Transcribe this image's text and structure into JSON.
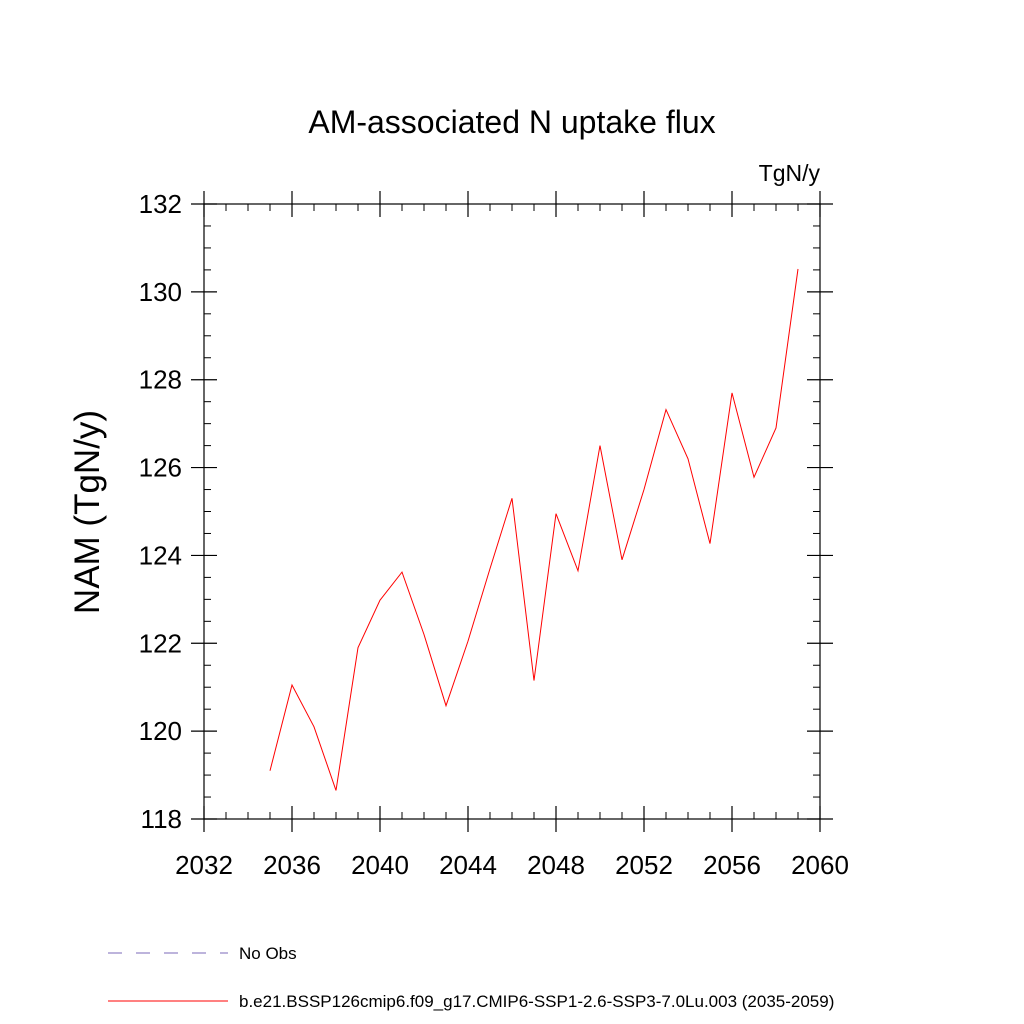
{
  "chart_data": {
    "type": "line",
    "title": "AM-associated N uptake flux",
    "units_label": "TgN/y",
    "ylabel": "NAM  (TgN/y)",
    "xlabel": "",
    "xlim": [
      2032,
      2060
    ],
    "ylim": [
      118,
      132
    ],
    "x_ticks": [
      2032,
      2036,
      2040,
      2044,
      2048,
      2052,
      2056,
      2060
    ],
    "y_ticks": [
      118,
      120,
      122,
      124,
      126,
      128,
      130,
      132
    ],
    "x_minor_step": 1,
    "y_minor_step": 0.5,
    "grid": false,
    "legend_position": "bottom",
    "legend": [
      {
        "name": "No Obs",
        "color": "#7b68b8",
        "dash": "dashed"
      },
      {
        "name": "b.e21.BSSP126cmip6.f09_g17.CMIP6-SSP1-2.6-SSP3-7.0Lu.003 (2035-2059)",
        "color": "#ff0000",
        "dash": "solid"
      }
    ],
    "series": [
      {
        "name": "b.e21.BSSP126cmip6.f09_g17.CMIP6-SSP1-2.6-SSP3-7.0Lu.003 (2035-2059)",
        "color": "#ff0000",
        "x": [
          2035,
          2036,
          2037,
          2038,
          2039,
          2040,
          2041,
          2042,
          2043,
          2044,
          2045,
          2046,
          2047,
          2048,
          2049,
          2050,
          2051,
          2052,
          2053,
          2054,
          2055,
          2056,
          2057,
          2058,
          2059
        ],
        "y": [
          119.1,
          121.05,
          120.1,
          118.65,
          121.9,
          122.98,
          123.62,
          122.2,
          120.58,
          122.05,
          123.7,
          125.3,
          121.15,
          124.95,
          123.65,
          126.5,
          123.9,
          125.5,
          127.32,
          126.2,
          124.27,
          127.7,
          125.78,
          126.9,
          130.52
        ]
      }
    ]
  }
}
